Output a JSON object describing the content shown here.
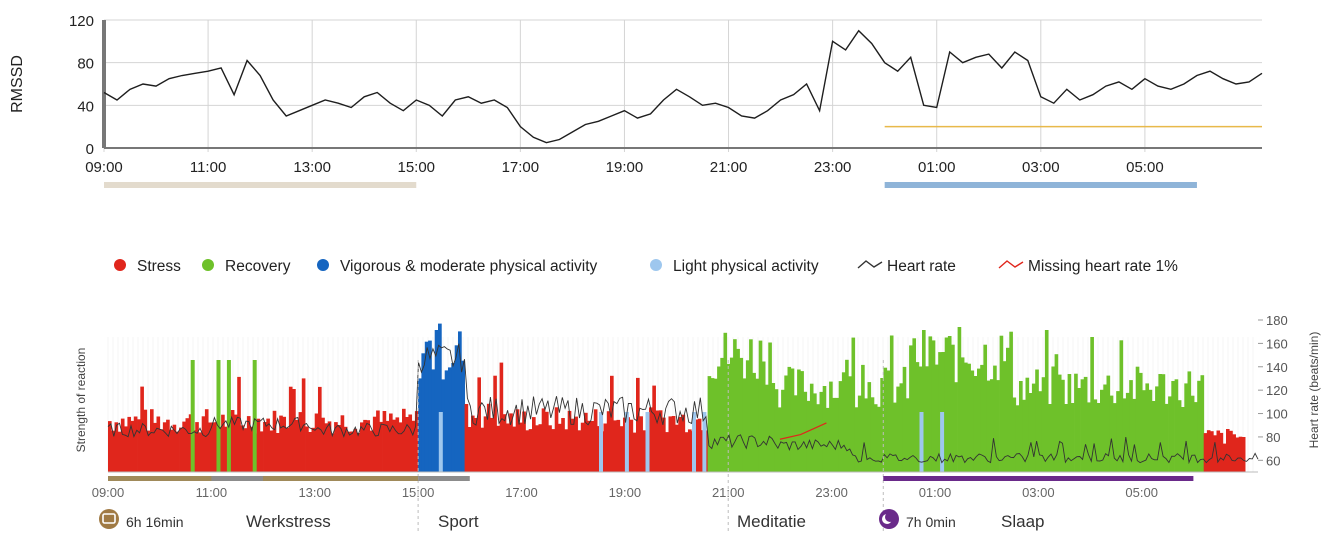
{
  "chart_data": [
    {
      "type": "line",
      "ylabel": "RMSSD",
      "ylim": [
        0,
        120
      ],
      "yticks": [
        "0",
        "40",
        "80",
        "120"
      ],
      "xticks": [
        "09:00",
        "11:00",
        "13:00",
        "15:00",
        "17:00",
        "19:00",
        "21:00",
        "23:00",
        "01:00",
        "03:00",
        "05:00"
      ],
      "grid": true,
      "series": [
        {
          "x": [
            0,
            0.25,
            0.5,
            0.75,
            1,
            1.25,
            1.5,
            1.75,
            2,
            2.25,
            2.5,
            2.75,
            3,
            3.25,
            3.5,
            3.75,
            4,
            4.25,
            4.5,
            4.75,
            5,
            5.25,
            5.5,
            5.75,
            6,
            6.25,
            6.5,
            6.75,
            7,
            7.25,
            7.5,
            7.75,
            8,
            8.25,
            8.5,
            8.75,
            9,
            9.25,
            9.5,
            9.75,
            10,
            10.25,
            10.5,
            10.75,
            11,
            11.25,
            11.5,
            11.75,
            12,
            12.25,
            12.5,
            12.75,
            13,
            13.25,
            13.5,
            13.75,
            14,
            14.25,
            14.5,
            14.75,
            15,
            15.25,
            15.5,
            15.75,
            16,
            16.25,
            16.5,
            16.75,
            17,
            17.25,
            17.5,
            17.75,
            18,
            18.25,
            18.5,
            18.75,
            19,
            19.25,
            19.5,
            19.75,
            20,
            20.25,
            20.5,
            20.75,
            21,
            21.25,
            21.5,
            21.75,
            22,
            22.25
          ],
          "values": [
            52,
            45,
            55,
            60,
            58,
            65,
            68,
            70,
            72,
            75,
            50,
            82,
            68,
            45,
            30,
            35,
            40,
            45,
            42,
            38,
            48,
            52,
            42,
            35,
            45,
            40,
            30,
            45,
            48,
            42,
            45,
            38,
            20,
            10,
            5,
            8,
            15,
            22,
            25,
            30,
            35,
            28,
            32,
            45,
            55,
            48,
            40,
            42,
            38,
            30,
            28,
            35,
            45,
            50,
            60,
            35,
            100,
            92,
            110,
            98,
            80,
            72,
            85,
            40,
            38,
            90,
            80,
            85,
            88,
            75,
            90,
            82,
            48,
            42,
            55,
            45,
            50,
            58,
            62,
            55,
            65,
            58,
            55,
            60,
            68,
            72,
            65,
            60,
            62,
            70
          ]
        }
      ],
      "threshold_value": 20,
      "threshold_color": "#e8b94a",
      "bands": [
        {
          "from": "09:00",
          "to": "15:00",
          "color": "#e3dbcd"
        },
        {
          "from": "00:00",
          "to": "06:00",
          "color": "#8fb4d8"
        }
      ]
    },
    {
      "type": "bar",
      "ylabel": "Strength of reaction",
      "y2label": "Heart rate (beats/min)",
      "y2lim": [
        50,
        180
      ],
      "y2ticks": [
        "60",
        "80",
        "100",
        "120",
        "140",
        "160",
        "180"
      ],
      "xticks": [
        "09:00",
        "11:00",
        "13:00",
        "15:00",
        "17:00",
        "19:00",
        "21:00",
        "23:00",
        "01:00",
        "03:00",
        "05:00"
      ],
      "legend": [
        {
          "label": "Stress",
          "color": "#e0261c",
          "kind": "dot"
        },
        {
          "label": "Recovery",
          "color": "#6ec12a",
          "kind": "dot"
        },
        {
          "label": "Vigorous & moderate physical activity",
          "color": "#1565c0",
          "kind": "dot"
        },
        {
          "label": "Light physical activity",
          "color": "#9ec7ee",
          "kind": "dot"
        },
        {
          "label": "Heart rate",
          "color": "#333333",
          "kind": "line"
        },
        {
          "label": "Missing heart rate 1%",
          "color": "#e0261c",
          "kind": "line"
        }
      ],
      "segments": [
        {
          "from": 0,
          "to": 6,
          "type": "Stress",
          "level": 0.36
        },
        {
          "from": 6,
          "to": 6.9,
          "type": "Vigorous & moderate physical activity",
          "level": 0.85
        },
        {
          "from": 6.9,
          "to": 7.7,
          "type": "Stress",
          "level": 0.4
        },
        {
          "from": 7.7,
          "to": 11.6,
          "type": "Stress",
          "level": 0.37
        },
        {
          "from": 11.6,
          "to": 12.9,
          "type": "Recovery",
          "level": 0.82
        },
        {
          "from": 12.9,
          "to": 15.5,
          "type": "Recovery",
          "level": 0.6
        },
        {
          "from": 15.5,
          "to": 17.5,
          "type": "Recovery",
          "level": 0.82
        },
        {
          "from": 17.5,
          "to": 21.2,
          "type": "Recovery",
          "level": 0.6
        },
        {
          "from": 21.2,
          "to": 22,
          "type": "Stress",
          "level": 0.25
        }
      ],
      "periods": [
        {
          "from": "09:00",
          "to": "15:00",
          "color": "#a08a5a"
        },
        {
          "from": "11:00",
          "to": "12:00",
          "color": "#8c8c8c"
        },
        {
          "from": "15:00",
          "to": "16:30",
          "color": "#8c8c8c"
        },
        {
          "from": "21:00",
          "to": "21:40",
          "color": "#8c8c8c"
        },
        {
          "from": "00:00",
          "to": "06:00",
          "color": "#6a2a8a"
        }
      ],
      "annotations": [
        {
          "text": "6h 16min",
          "icon": "briefcase-icon",
          "color": "#a07a44"
        },
        {
          "text": "Werkstress"
        },
        {
          "text": "Sport"
        },
        {
          "text": "Meditatie"
        },
        {
          "text": "7h 0min",
          "icon": "moon-icon",
          "color": "#6a2a8a"
        },
        {
          "text": "Slaap"
        }
      ]
    }
  ]
}
